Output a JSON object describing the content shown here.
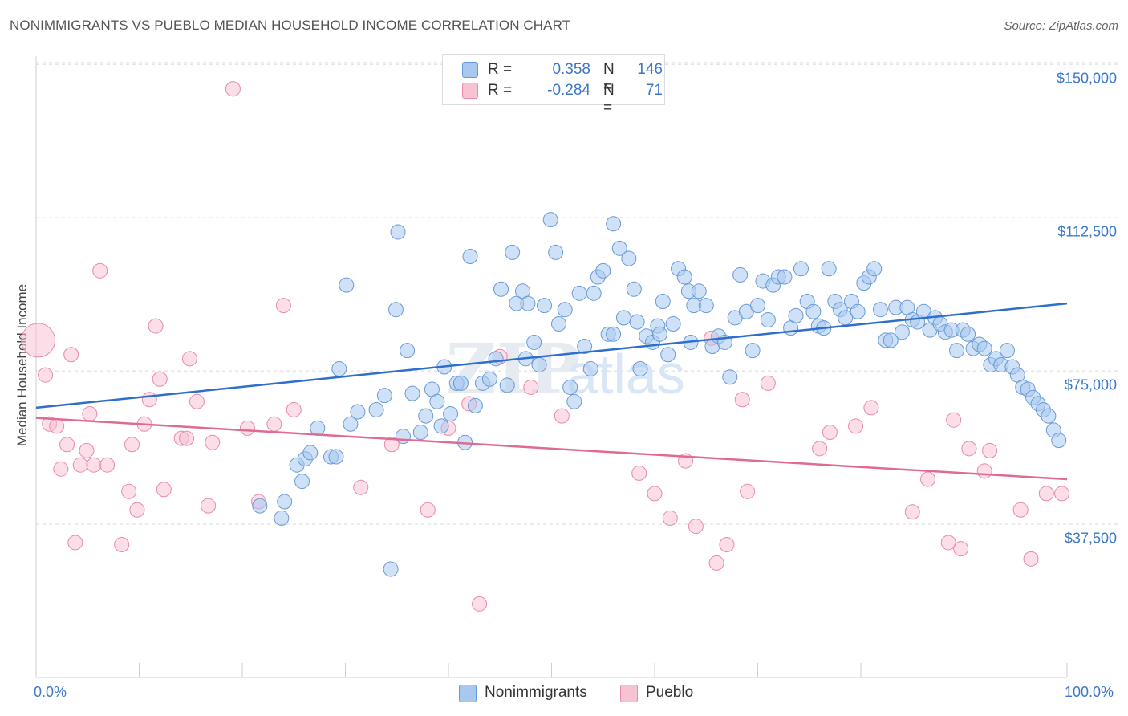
{
  "header": {
    "title": "NONIMMIGRANTS VS PUEBLO MEDIAN HOUSEHOLD INCOME CORRELATION CHART",
    "source": "Source: ZipAtlas.com"
  },
  "watermark": {
    "zip": "ZIP",
    "atlas": "atlas"
  },
  "legend": {
    "rows": [
      {
        "r_label": "R =",
        "r_value": "0.358",
        "n_label": "N =",
        "n_value": "146"
      },
      {
        "r_label": "R =",
        "r_value": "-0.284",
        "n_label": "N =",
        "n_value": "71"
      }
    ]
  },
  "colors": {
    "blue_fill": "#a8c8f0",
    "blue_stroke": "#6a9ad6",
    "blue_line": "#2f6fcc",
    "pink_fill": "#f7c3d3",
    "pink_stroke": "#e98aa8",
    "pink_line": "#e06a93",
    "grid": "#d8d8d8",
    "axis_text": "#3b78c8"
  },
  "chart_data": {
    "type": "scatter",
    "title": "NONIMMIGRANTS VS PUEBLO MEDIAN HOUSEHOLD INCOME CORRELATION CHART",
    "xlabel": "",
    "ylabel": "Median Household Income",
    "x_tick_labels": [
      "0.0%",
      "100.0%"
    ],
    "y_tick_labels": [
      "$37,500",
      "$75,000",
      "$112,500",
      "$150,000"
    ],
    "y_tick_values": [
      37500,
      75000,
      112500,
      150000
    ],
    "xlim": [
      0,
      100
    ],
    "ylim": [
      0,
      152000
    ],
    "grid": true,
    "legend_position": "top-center",
    "series": [
      {
        "name": "Nonimmigrants",
        "color": "#a8c8f0",
        "r": 0.358,
        "n": 146,
        "trend": {
          "x": [
            0,
            100
          ],
          "y": [
            66000,
            91500
          ]
        },
        "points": [
          [
            21.7,
            42000
          ],
          [
            23.8,
            39000
          ],
          [
            24.1,
            43000
          ],
          [
            25.3,
            52000
          ],
          [
            25.8,
            48000
          ],
          [
            26.1,
            53500
          ],
          [
            26.6,
            55000
          ],
          [
            27.3,
            61000
          ],
          [
            28.6,
            54000
          ],
          [
            29.1,
            54000
          ],
          [
            29.4,
            75500
          ],
          [
            30.1,
            96000
          ],
          [
            30.5,
            62000
          ],
          [
            31.2,
            65000
          ],
          [
            33.0,
            65500
          ],
          [
            33.8,
            69000
          ],
          [
            34.4,
            26500
          ],
          [
            34.9,
            90000
          ],
          [
            35.1,
            109000
          ],
          [
            35.6,
            59000
          ],
          [
            36.0,
            80000
          ],
          [
            36.5,
            69500
          ],
          [
            37.3,
            60000
          ],
          [
            37.8,
            64000
          ],
          [
            38.4,
            70500
          ],
          [
            38.9,
            67500
          ],
          [
            39.3,
            61500
          ],
          [
            39.6,
            76000
          ],
          [
            40.2,
            64500
          ],
          [
            40.8,
            72000
          ],
          [
            41.2,
            72000
          ],
          [
            41.6,
            57500
          ],
          [
            42.1,
            103000
          ],
          [
            42.6,
            66500
          ],
          [
            43.3,
            72000
          ],
          [
            44.0,
            73000
          ],
          [
            44.6,
            78000
          ],
          [
            45.1,
            95000
          ],
          [
            45.7,
            71500
          ],
          [
            46.2,
            104000
          ],
          [
            46.6,
            91500
          ],
          [
            47.2,
            94500
          ],
          [
            47.7,
            91500
          ],
          [
            48.3,
            82000
          ],
          [
            48.8,
            76500
          ],
          [
            49.3,
            91000
          ],
          [
            49.9,
            112000
          ],
          [
            50.4,
            104000
          ],
          [
            50.7,
            86500
          ],
          [
            51.3,
            90000
          ],
          [
            51.8,
            71000
          ],
          [
            52.2,
            67500
          ],
          [
            52.7,
            94000
          ],
          [
            53.2,
            81000
          ],
          [
            53.8,
            75500
          ],
          [
            54.1,
            94000
          ],
          [
            54.5,
            98000
          ],
          [
            55.0,
            99500
          ],
          [
            55.5,
            84000
          ],
          [
            56.0,
            84000
          ],
          [
            56.6,
            105000
          ],
          [
            57.0,
            88000
          ],
          [
            57.5,
            102500
          ],
          [
            58.0,
            95000
          ],
          [
            58.6,
            75500
          ],
          [
            59.2,
            83500
          ],
          [
            59.8,
            82000
          ],
          [
            60.3,
            86000
          ],
          [
            60.8,
            92000
          ],
          [
            61.3,
            79000
          ],
          [
            61.8,
            86500
          ],
          [
            62.3,
            100000
          ],
          [
            62.9,
            98000
          ],
          [
            63.3,
            94500
          ],
          [
            63.8,
            91000
          ],
          [
            64.3,
            94500
          ],
          [
            65.0,
            91000
          ],
          [
            65.6,
            81000
          ],
          [
            66.2,
            83500
          ],
          [
            66.8,
            82000
          ],
          [
            67.3,
            73500
          ],
          [
            67.8,
            88000
          ],
          [
            68.3,
            98500
          ],
          [
            68.9,
            89500
          ],
          [
            69.5,
            80000
          ],
          [
            70.0,
            91000
          ],
          [
            70.5,
            97000
          ],
          [
            71.0,
            87500
          ],
          [
            71.5,
            96000
          ],
          [
            72.0,
            98000
          ],
          [
            72.6,
            98000
          ],
          [
            73.2,
            85500
          ],
          [
            73.7,
            88500
          ],
          [
            74.2,
            100000
          ],
          [
            74.8,
            92000
          ],
          [
            75.4,
            89500
          ],
          [
            75.9,
            86000
          ],
          [
            76.4,
            85500
          ],
          [
            76.9,
            100000
          ],
          [
            77.5,
            92000
          ],
          [
            78.0,
            90000
          ],
          [
            78.5,
            88000
          ],
          [
            79.1,
            92000
          ],
          [
            79.7,
            89500
          ],
          [
            80.3,
            96500
          ],
          [
            80.8,
            98000
          ],
          [
            81.3,
            100000
          ],
          [
            81.9,
            90000
          ],
          [
            82.4,
            82500
          ],
          [
            82.9,
            82500
          ],
          [
            83.4,
            90500
          ],
          [
            84.0,
            84500
          ],
          [
            84.5,
            90500
          ],
          [
            85.0,
            87500
          ],
          [
            85.5,
            87000
          ],
          [
            86.1,
            89500
          ],
          [
            86.7,
            85000
          ],
          [
            87.2,
            88000
          ],
          [
            87.7,
            86500
          ],
          [
            88.2,
            84500
          ],
          [
            88.8,
            85000
          ],
          [
            89.3,
            80000
          ],
          [
            89.9,
            85000
          ],
          [
            90.4,
            84000
          ],
          [
            90.9,
            80500
          ],
          [
            91.5,
            81500
          ],
          [
            92.0,
            80500
          ],
          [
            92.6,
            76500
          ],
          [
            93.1,
            78000
          ],
          [
            93.6,
            76500
          ],
          [
            94.2,
            80000
          ],
          [
            94.7,
            76000
          ],
          [
            95.2,
            74000
          ],
          [
            95.7,
            71000
          ],
          [
            96.2,
            70500
          ],
          [
            96.7,
            68500
          ],
          [
            97.2,
            67000
          ],
          [
            97.7,
            65500
          ],
          [
            98.2,
            64000
          ],
          [
            98.7,
            60500
          ],
          [
            99.2,
            58000
          ],
          [
            56.0,
            111000
          ],
          [
            60.5,
            84000
          ],
          [
            47.5,
            78000
          ],
          [
            58.3,
            87000
          ],
          [
            63.5,
            82000
          ]
        ]
      },
      {
        "name": "Pueblo",
        "color": "#f7c3d3",
        "r": -0.284,
        "n": 71,
        "trend": {
          "x": [
            0,
            100
          ],
          "y": [
            63500,
            48500
          ]
        },
        "points": [
          [
            0.2,
            82500
          ],
          [
            0.9,
            74000
          ],
          [
            1.3,
            62000
          ],
          [
            2.0,
            61500
          ],
          [
            2.4,
            51000
          ],
          [
            3.0,
            57000
          ],
          [
            3.4,
            79000
          ],
          [
            3.8,
            33000
          ],
          [
            4.3,
            52000
          ],
          [
            4.9,
            55500
          ],
          [
            5.2,
            64500
          ],
          [
            5.6,
            52000
          ],
          [
            6.2,
            99500
          ],
          [
            6.9,
            52000
          ],
          [
            8.3,
            32500
          ],
          [
            9.0,
            45500
          ],
          [
            9.3,
            57000
          ],
          [
            9.8,
            41000
          ],
          [
            10.5,
            62000
          ],
          [
            11.0,
            68000
          ],
          [
            11.6,
            86000
          ],
          [
            12.0,
            73000
          ],
          [
            12.4,
            46000
          ],
          [
            14.1,
            58500
          ],
          [
            14.6,
            58500
          ],
          [
            14.9,
            78000
          ],
          [
            15.6,
            67500
          ],
          [
            16.7,
            42000
          ],
          [
            17.1,
            57500
          ],
          [
            19.1,
            144000
          ],
          [
            20.5,
            61000
          ],
          [
            21.6,
            43000
          ],
          [
            23.1,
            62000
          ],
          [
            24.0,
            91000
          ],
          [
            25.0,
            65500
          ],
          [
            31.5,
            46500
          ],
          [
            34.5,
            57000
          ],
          [
            38.0,
            41000
          ],
          [
            40.0,
            61000
          ],
          [
            42.0,
            67000
          ],
          [
            43.0,
            18000
          ],
          [
            45.0,
            78500
          ],
          [
            48.0,
            71000
          ],
          [
            51.0,
            64000
          ],
          [
            58.5,
            50000
          ],
          [
            60.0,
            45000
          ],
          [
            61.5,
            39000
          ],
          [
            63.0,
            53000
          ],
          [
            64.0,
            37000
          ],
          [
            65.5,
            83000
          ],
          [
            66.0,
            28000
          ],
          [
            67.0,
            32500
          ],
          [
            68.5,
            68000
          ],
          [
            69.0,
            45500
          ],
          [
            71.0,
            72000
          ],
          [
            76.0,
            56000
          ],
          [
            77.0,
            60000
          ],
          [
            79.5,
            61500
          ],
          [
            81.0,
            66000
          ],
          [
            85.0,
            40500
          ],
          [
            86.5,
            48500
          ],
          [
            88.5,
            33000
          ],
          [
            89.0,
            63000
          ],
          [
            89.7,
            31500
          ],
          [
            90.5,
            56000
          ],
          [
            92.0,
            50500
          ],
          [
            92.5,
            55500
          ],
          [
            95.5,
            41000
          ],
          [
            96.5,
            29000
          ],
          [
            98.0,
            45000
          ],
          [
            99.5,
            45000
          ]
        ]
      }
    ]
  }
}
